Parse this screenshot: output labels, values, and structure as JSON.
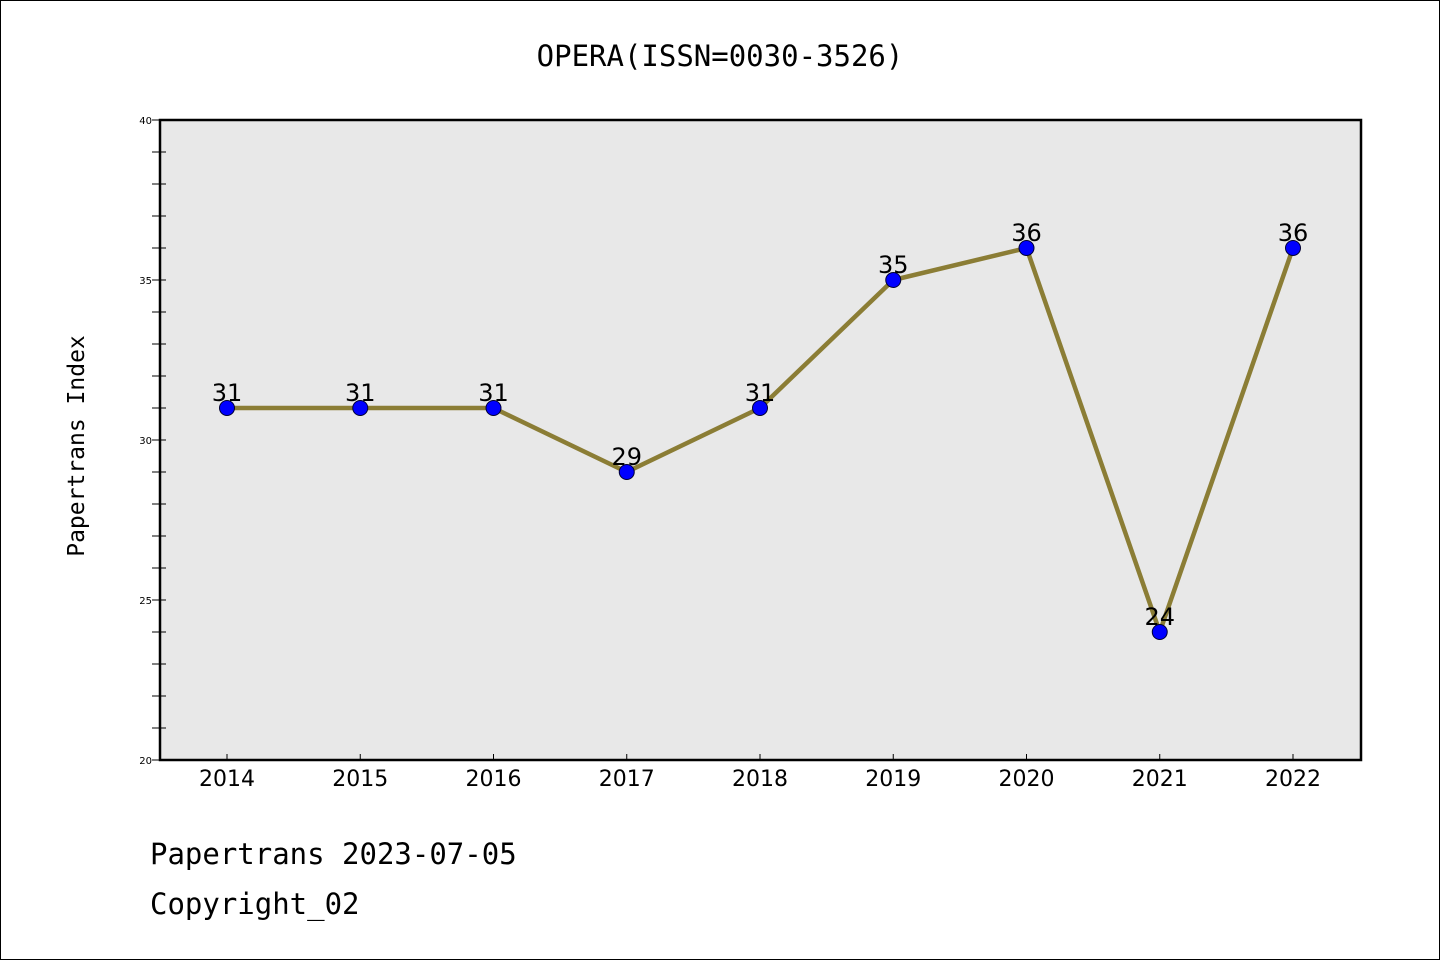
{
  "chart_data": {
    "type": "line",
    "title": "OPERA(ISSN=0030-3526)",
    "ylabel": "Papertrans Index",
    "xlabel": "",
    "categories": [
      "2014",
      "2015",
      "2016",
      "2017",
      "2018",
      "2019",
      "2020",
      "2021",
      "2022"
    ],
    "values": [
      31,
      31,
      31,
      29,
      31,
      35,
      36,
      24,
      36
    ],
    "ylim": [
      20,
      40
    ],
    "yticks": [
      "20",
      "25",
      "30",
      "35",
      "40"
    ],
    "grid": false,
    "legend": "none",
    "colors": {
      "line": "#8b7d35",
      "marker": "#0000ff",
      "plot_background": "#e8e8e8"
    }
  },
  "footer": {
    "line1": "Papertrans 2023-07-05",
    "line2": "Copyright_02"
  }
}
